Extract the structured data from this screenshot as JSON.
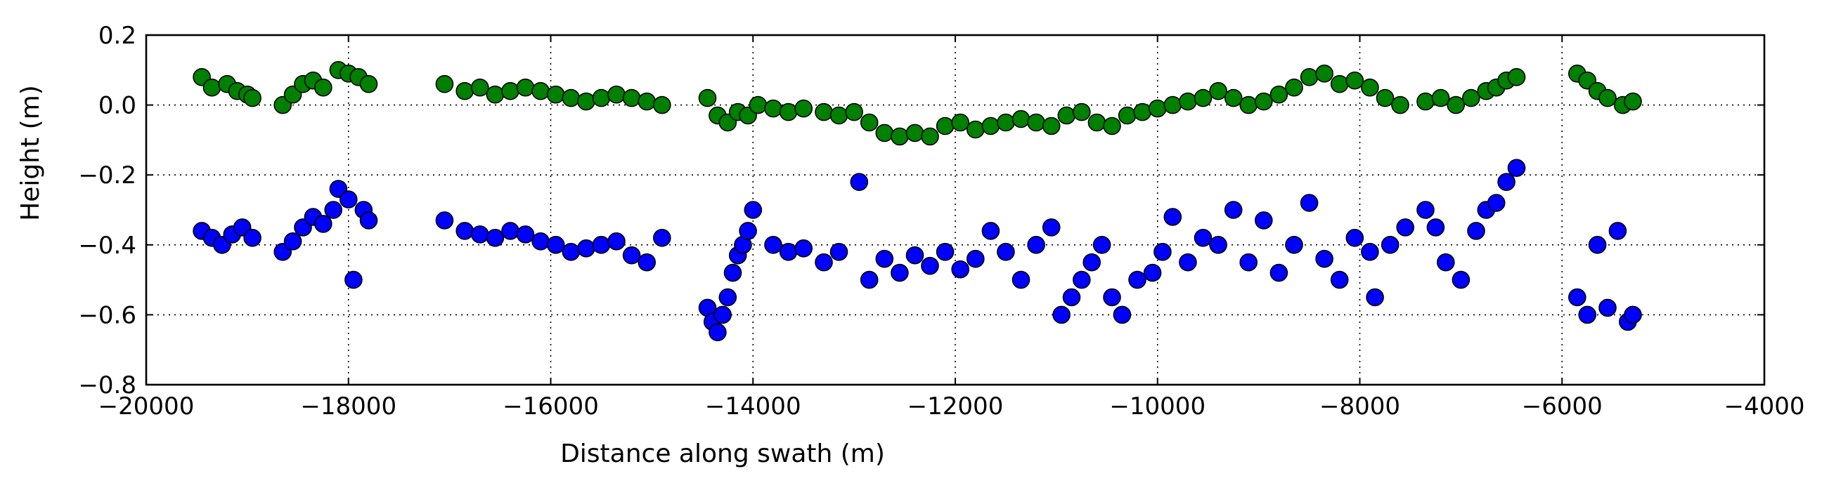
{
  "chart_data": {
    "type": "scatter",
    "xlabel": "Distance along swath (m)",
    "ylabel": "Height (m)",
    "xlim": [
      -20000,
      -4000
    ],
    "ylim": [
      -0.8,
      0.2
    ],
    "x_ticks": [
      -20000,
      -18000,
      -16000,
      -14000,
      -12000,
      -10000,
      -8000,
      -6000,
      -4000
    ],
    "x_tick_labels": [
      "−20000",
      "−18000",
      "−16000",
      "−14000",
      "−12000",
      "−10000",
      "−8000",
      "−6000",
      "−4000"
    ],
    "y_ticks": [
      0.2,
      0.0,
      -0.2,
      -0.4,
      -0.6,
      -0.8
    ],
    "y_tick_labels": [
      "0.2",
      "0.0",
      "−0.2",
      "−0.4",
      "−0.6",
      "−0.8"
    ],
    "grid": true,
    "series": [
      {
        "color": "#008000",
        "x": [
          -19450,
          -19350,
          -19200,
          -19100,
          -19000,
          -18950,
          -18650,
          -18550,
          -18450,
          -18350,
          -18250,
          -18100,
          -18000,
          -17900,
          -17800,
          -17050,
          -16850,
          -16700,
          -16550,
          -16400,
          -16250,
          -16100,
          -15950,
          -15800,
          -15650,
          -15500,
          -15350,
          -15200,
          -15050,
          -14900,
          -14450,
          -14350,
          -14250,
          -14150,
          -14050,
          -13950,
          -13800,
          -13650,
          -13500,
          -13300,
          -13150,
          -13000,
          -12850,
          -12700,
          -12550,
          -12400,
          -12250,
          -12100,
          -11950,
          -11800,
          -11650,
          -11500,
          -11350,
          -11200,
          -11050,
          -10900,
          -10750,
          -10600,
          -10450,
          -10300,
          -10150,
          -10000,
          -9850,
          -9700,
          -9550,
          -9400,
          -9250,
          -9100,
          -8950,
          -8800,
          -8650,
          -8500,
          -8350,
          -8200,
          -8050,
          -7900,
          -7750,
          -7600,
          -7350,
          -7200,
          -7050,
          -6900,
          -6750,
          -6650,
          -6550,
          -6450,
          -5850,
          -5750,
          -5650,
          -5550,
          -5400,
          -5300
        ],
        "y": [
          0.08,
          0.05,
          0.06,
          0.04,
          0.03,
          0.02,
          0.0,
          0.03,
          0.06,
          0.07,
          0.05,
          0.1,
          0.09,
          0.08,
          0.06,
          0.06,
          0.04,
          0.05,
          0.03,
          0.04,
          0.05,
          0.04,
          0.03,
          0.02,
          0.01,
          0.02,
          0.03,
          0.02,
          0.01,
          0.0,
          0.02,
          -0.03,
          -0.05,
          -0.02,
          -0.03,
          0.0,
          -0.01,
          -0.02,
          -0.01,
          -0.02,
          -0.03,
          -0.02,
          -0.05,
          -0.08,
          -0.09,
          -0.08,
          -0.09,
          -0.06,
          -0.05,
          -0.07,
          -0.06,
          -0.05,
          -0.04,
          -0.05,
          -0.06,
          -0.03,
          -0.02,
          -0.05,
          -0.06,
          -0.03,
          -0.02,
          -0.01,
          0.0,
          0.01,
          0.02,
          0.04,
          0.02,
          0.0,
          0.01,
          0.03,
          0.05,
          0.08,
          0.09,
          0.06,
          0.07,
          0.05,
          0.02,
          0.0,
          0.01,
          0.02,
          0.0,
          0.02,
          0.04,
          0.05,
          0.07,
          0.08,
          0.09,
          0.07,
          0.04,
          0.02,
          0.0,
          0.01
        ]
      },
      {
        "color": "#0000ff",
        "x": [
          -19450,
          -19350,
          -19250,
          -19150,
          -19050,
          -18950,
          -18650,
          -18550,
          -18450,
          -18350,
          -18250,
          -18150,
          -18100,
          -18000,
          -17950,
          -17850,
          -17800,
          -17050,
          -16850,
          -16700,
          -16550,
          -16400,
          -16250,
          -16100,
          -15950,
          -15800,
          -15650,
          -15500,
          -15350,
          -15200,
          -15050,
          -14900,
          -14450,
          -14400,
          -14350,
          -14300,
          -14250,
          -14200,
          -14150,
          -14100,
          -14050,
          -14000,
          -13800,
          -13650,
          -13500,
          -13300,
          -13150,
          -12950,
          -12850,
          -12700,
          -12550,
          -12400,
          -12250,
          -12100,
          -11950,
          -11800,
          -11650,
          -11500,
          -11350,
          -11200,
          -11050,
          -10950,
          -10850,
          -10750,
          -10650,
          -10550,
          -10450,
          -10350,
          -10200,
          -10050,
          -9950,
          -9850,
          -9700,
          -9550,
          -9400,
          -9250,
          -9100,
          -8950,
          -8800,
          -8650,
          -8500,
          -8350,
          -8200,
          -8050,
          -7900,
          -7850,
          -7700,
          -7550,
          -7350,
          -7250,
          -7150,
          -7000,
          -6850,
          -6750,
          -6650,
          -6550,
          -6450,
          -5850,
          -5750,
          -5650,
          -5550,
          -5450,
          -5350,
          -5300
        ],
        "y": [
          -0.36,
          -0.38,
          -0.4,
          -0.37,
          -0.35,
          -0.38,
          -0.42,
          -0.39,
          -0.35,
          -0.32,
          -0.34,
          -0.3,
          -0.24,
          -0.27,
          -0.5,
          -0.3,
          -0.33,
          -0.33,
          -0.36,
          -0.37,
          -0.38,
          -0.36,
          -0.37,
          -0.39,
          -0.4,
          -0.42,
          -0.41,
          -0.4,
          -0.39,
          -0.43,
          -0.45,
          -0.38,
          -0.58,
          -0.62,
          -0.65,
          -0.6,
          -0.55,
          -0.48,
          -0.43,
          -0.4,
          -0.36,
          -0.3,
          -0.4,
          -0.42,
          -0.41,
          -0.45,
          -0.42,
          -0.22,
          -0.5,
          -0.44,
          -0.48,
          -0.43,
          -0.46,
          -0.42,
          -0.47,
          -0.44,
          -0.36,
          -0.42,
          -0.5,
          -0.4,
          -0.35,
          -0.6,
          -0.55,
          -0.5,
          -0.45,
          -0.4,
          -0.55,
          -0.6,
          -0.5,
          -0.48,
          -0.42,
          -0.32,
          -0.45,
          -0.38,
          -0.4,
          -0.3,
          -0.45,
          -0.33,
          -0.48,
          -0.4,
          -0.28,
          -0.44,
          -0.5,
          -0.38,
          -0.42,
          -0.55,
          -0.4,
          -0.35,
          -0.3,
          -0.35,
          -0.45,
          -0.5,
          -0.36,
          -0.3,
          -0.28,
          -0.22,
          -0.18,
          -0.55,
          -0.6,
          -0.4,
          -0.58,
          -0.36,
          -0.62,
          -0.6
        ]
      }
    ]
  }
}
